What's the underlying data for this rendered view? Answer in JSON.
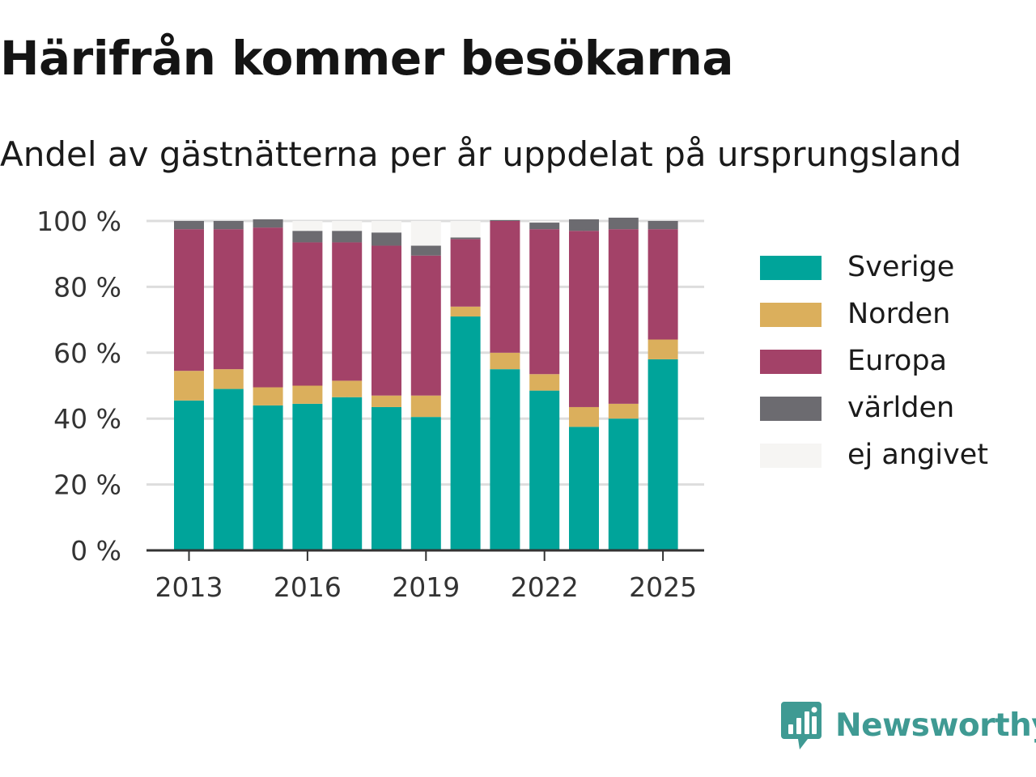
{
  "title": "Härifrån kommer besökarna",
  "subtitle": "Andel av gästnätterna per år uppdelat på ursprungsland",
  "brand": {
    "name": "Newsworthy",
    "icon": "newsworthy-logo-icon",
    "color": "#3f9a93"
  },
  "legend": [
    {
      "label": "Sverige",
      "color": "#00a49a"
    },
    {
      "label": "Norden",
      "color": "#dbaf5c"
    },
    {
      "label": "Europa",
      "color": "#a34268"
    },
    {
      "label": "världen",
      "color": "#6c6b70"
    },
    {
      "label": "ej angivet",
      "color": "#f6f5f3"
    }
  ],
  "chart_data": {
    "type": "bar",
    "stacked": true,
    "categories": [
      2013,
      2014,
      2015,
      2016,
      2017,
      2018,
      2019,
      2020,
      2021,
      2022,
      2023,
      2024,
      2025
    ],
    "x_tick_labels": [
      "2013",
      "2016",
      "2019",
      "2022",
      "2025"
    ],
    "y_tick_labels": [
      "0 %",
      "20 %",
      "40 %",
      "60 %",
      "80 %",
      "100 %"
    ],
    "ylim": [
      0,
      100
    ],
    "grid": true,
    "legend_position": "right",
    "series": [
      {
        "name": "Sverige",
        "color": "#00a49a",
        "values": [
          45.5,
          49,
          44,
          44.5,
          46.5,
          43.5,
          40.5,
          71,
          55,
          48.5,
          37.5,
          40,
          58
        ]
      },
      {
        "name": "Norden",
        "color": "#dbaf5c",
        "values": [
          9,
          6,
          5.5,
          5.5,
          5,
          3.5,
          6.5,
          3,
          5,
          5,
          6,
          4.5,
          6
        ]
      },
      {
        "name": "Europa",
        "color": "#a34268",
        "values": [
          43,
          42.5,
          48.5,
          43.5,
          42,
          45.5,
          42.5,
          20.5,
          40,
          44,
          53.5,
          53,
          33.5
        ]
      },
      {
        "name": "världen",
        "color": "#6c6b70",
        "values": [
          2.5,
          2.5,
          2.5,
          3.5,
          3.5,
          4,
          3,
          0.5,
          0.3,
          2,
          3.5,
          3.5,
          2.5
        ]
      },
      {
        "name": "ej angivet",
        "color": "#f6f5f3",
        "values": [
          0,
          0,
          0,
          3,
          3,
          3.5,
          7.5,
          5,
          0.2,
          0.5,
          0,
          0,
          0
        ]
      }
    ]
  }
}
